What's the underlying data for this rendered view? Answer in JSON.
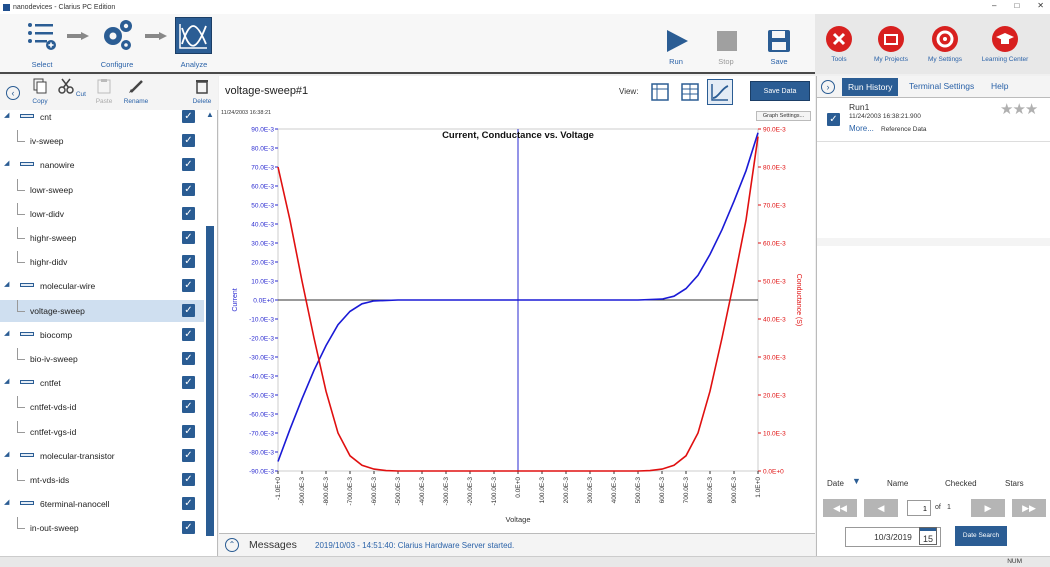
{
  "window": {
    "title": "nanodevices - Clarius PC Edition",
    "minimize": "–",
    "maximize": "□",
    "close": "✕"
  },
  "toolbar": {
    "select_label": "Select",
    "configure_label": "Configure",
    "analyze_label": "Analyze",
    "run_label": "Run",
    "stop_label": "Stop",
    "save_label": "Save",
    "tools_label": "Tools",
    "my_projects_label": "My Projects",
    "my_settings_label": "My Settings",
    "learning_center_label": "Learning Center"
  },
  "left_toolbar": {
    "copy": "Copy",
    "cut": "Cut",
    "paste": "Paste",
    "rename": "Rename",
    "delete": "Delete"
  },
  "tree": [
    {
      "label": "cnt",
      "level": 0,
      "icon": "device-icon"
    },
    {
      "label": "iv-sweep",
      "level": 1
    },
    {
      "label": "nanowire",
      "level": 0,
      "icon": "device-icon"
    },
    {
      "label": "lowr-sweep",
      "level": 1
    },
    {
      "label": "lowr-didv",
      "level": 1
    },
    {
      "label": "highr-sweep",
      "level": 1
    },
    {
      "label": "highr-didv",
      "level": 1
    },
    {
      "label": "molecular-wire",
      "level": 0,
      "icon": "device-icon"
    },
    {
      "label": "voltage-sweep",
      "level": 1,
      "selected": true
    },
    {
      "label": "biocomp",
      "level": 0,
      "icon": "device-icon"
    },
    {
      "label": "bio-iv-sweep",
      "level": 1
    },
    {
      "label": "cntfet",
      "level": 0,
      "icon": "device-icon"
    },
    {
      "label": "cntfet-vds-id",
      "level": 1
    },
    {
      "label": "cntfet-vgs-id",
      "level": 1
    },
    {
      "label": "molecular-transistor",
      "level": 0,
      "icon": "device-icon"
    },
    {
      "label": "mt-vds-ids",
      "level": 1
    },
    {
      "label": "6terminal-nanocell",
      "level": 0,
      "icon": "device-icon"
    },
    {
      "label": "in-out-sweep",
      "level": 1
    }
  ],
  "center": {
    "title": "voltage-sweep#1",
    "view_label": "View:",
    "save_data": "Save Data",
    "timestamp": "11/24/2003 16:38:21",
    "graph_settings": "Graph Settings..."
  },
  "chart_data": {
    "type": "line",
    "title": "Current, Conductance vs. Voltage",
    "xlabel": "Voltage",
    "ylabel_left": "Current",
    "ylabel_right": "Conductance (S)",
    "x_ticks": [
      "-1.0E+0",
      "-900.0E-3",
      "-800.0E-3",
      "-700.0E-3",
      "-600.0E-3",
      "-500.0E-3",
      "-400.0E-3",
      "-300.0E-3",
      "-200.0E-3",
      "-100.0E-3",
      "0.0E+0",
      "100.0E-3",
      "200.0E-3",
      "300.0E-3",
      "400.0E-3",
      "500.0E-3",
      "600.0E-3",
      "700.0E-3",
      "800.0E-3",
      "900.0E-3",
      "1.0E+0"
    ],
    "y_left_ticks": [
      "90.0E-3",
      "80.0E-3",
      "70.0E-3",
      "60.0E-3",
      "50.0E-3",
      "40.0E-3",
      "30.0E-3",
      "20.0E-3",
      "10.0E-3",
      "0.0E+0",
      "-10.0E-3",
      "-20.0E-3",
      "-30.0E-3",
      "-40.0E-3",
      "-50.0E-3",
      "-60.0E-3",
      "-70.0E-3",
      "-80.0E-3",
      "-90.0E-3"
    ],
    "y_right_ticks": [
      "90.0E-3",
      "80.0E-3",
      "70.0E-3",
      "60.0E-3",
      "50.0E-3",
      "40.0E-3",
      "30.0E-3",
      "20.0E-3",
      "10.0E-3",
      "0.0E+0"
    ],
    "xlim": [
      -1.0,
      1.0
    ],
    "ylim_left": [
      -0.09,
      0.09
    ],
    "ylim_right": [
      0,
      0.09
    ],
    "series": [
      {
        "name": "Current",
        "axis": "left",
        "color": "#1a1ad6",
        "x": [
          -1.0,
          -0.95,
          -0.9,
          -0.85,
          -0.8,
          -0.75,
          -0.7,
          -0.65,
          -0.6,
          -0.5,
          -0.4,
          -0.2,
          0.0,
          0.2,
          0.4,
          0.5,
          0.6,
          0.65,
          0.7,
          0.75,
          0.8,
          0.85,
          0.9,
          0.95,
          1.0
        ],
        "y": [
          -0.085,
          -0.068,
          -0.052,
          -0.037,
          -0.024,
          -0.013,
          -0.006,
          -0.002,
          -0.0005,
          0.0,
          0.0,
          0.0,
          0.0,
          0.0,
          0.0,
          0.0,
          0.0005,
          0.002,
          0.006,
          0.013,
          0.024,
          0.037,
          0.052,
          0.068,
          0.088
        ]
      },
      {
        "name": "Conductance",
        "axis": "right",
        "color": "#e01010",
        "x": [
          -1.0,
          -0.95,
          -0.9,
          -0.85,
          -0.8,
          -0.75,
          -0.7,
          -0.65,
          -0.6,
          -0.55,
          -0.5,
          -0.4,
          -0.2,
          -0.1,
          0.1,
          0.2,
          0.4,
          0.5,
          0.55,
          0.6,
          0.65,
          0.7,
          0.75,
          0.8,
          0.85,
          0.9,
          0.95,
          1.0
        ],
        "y": [
          0.08,
          0.066,
          0.05,
          0.035,
          0.021,
          0.01,
          0.004,
          0.0015,
          0.0005,
          0.0001,
          0.0,
          0.0,
          0.0,
          0.0,
          0.0,
          0.0,
          0.0,
          0.0,
          0.0001,
          0.0005,
          0.0015,
          0.004,
          0.01,
          0.021,
          0.035,
          0.05,
          0.066,
          0.088
        ]
      }
    ],
    "grid": false
  },
  "messages": {
    "label": "Messages",
    "text": "2019/10/03 - 14:51:40: Clarius Hardware Server started."
  },
  "right_panel": {
    "tabs": [
      "Run History",
      "Terminal Settings",
      "Help"
    ],
    "run": {
      "name": "Run1",
      "timestamp": "11/24/2003 16:38:21.900",
      "more": "More...",
      "note": "Reference Data"
    },
    "sort": {
      "date": "Date",
      "name": "Name",
      "checked": "Checked",
      "stars": "Stars"
    },
    "page": {
      "current": "1",
      "of": "of",
      "total": "1"
    },
    "date_value": "10/3/2019",
    "calendar_day": "15",
    "date_search": "Date Search"
  },
  "status": {
    "num": "NUM"
  }
}
